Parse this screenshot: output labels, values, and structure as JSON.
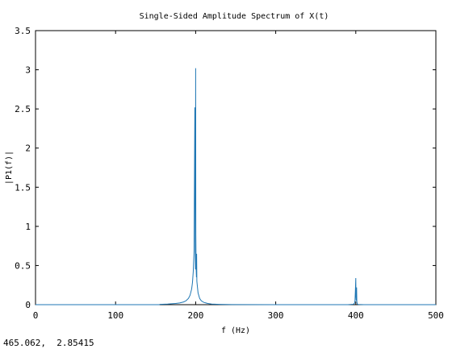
{
  "status": {
    "coordinate_readout": "465.062,  2.85415"
  },
  "chart_data": {
    "type": "line",
    "title": "Single-Sided Amplitude Spectrum of X(t)",
    "xlabel": "f (Hz)",
    "ylabel": "|P1(f)|",
    "xlim": [
      0,
      500
    ],
    "ylim": [
      0,
      3.5
    ],
    "xticks": [
      0,
      100,
      200,
      300,
      400,
      500
    ],
    "yticks": [
      0,
      0.5,
      1,
      1.5,
      2,
      2.5,
      3,
      3.5
    ],
    "xtick_labels": [
      "0",
      "100",
      "200",
      "300",
      "400",
      "500"
    ],
    "ytick_labels": [
      "0",
      "0.5",
      "1",
      "1.5",
      "2",
      "2.5",
      "3",
      "3.5"
    ],
    "grid": false,
    "series": [
      {
        "color": "#1f77b4",
        "x": [
          155,
          165,
          175,
          180,
          185,
          188,
          191,
          193,
          195,
          196,
          197,
          198,
          199,
          199.5,
          199.8,
          200,
          200.2,
          200.5,
          201,
          201.2,
          201.5,
          202,
          203,
          205,
          207,
          210,
          215,
          220,
          230,
          245,
          300,
          390,
          397,
          398.5,
          399,
          399.5,
          400,
          400.2,
          400.5,
          401,
          401.3,
          401.6,
          402,
          403,
          410,
          500
        ],
        "y": [
          0.004,
          0.008,
          0.015,
          0.022,
          0.035,
          0.05,
          0.08,
          0.12,
          0.2,
          0.28,
          0.42,
          0.68,
          2.52,
          0.7,
          0.45,
          3.02,
          0.9,
          0.5,
          0.35,
          0.65,
          0.3,
          0.25,
          0.15,
          0.08,
          0.05,
          0.03,
          0.015,
          0.008,
          0.004,
          0.001,
          0.0,
          0.0,
          0.005,
          0.02,
          0.05,
          0.18,
          0.34,
          0.1,
          0.05,
          0.22,
          0.04,
          0.02,
          0.008,
          0.002,
          0.0,
          0.0
        ]
      }
    ]
  }
}
